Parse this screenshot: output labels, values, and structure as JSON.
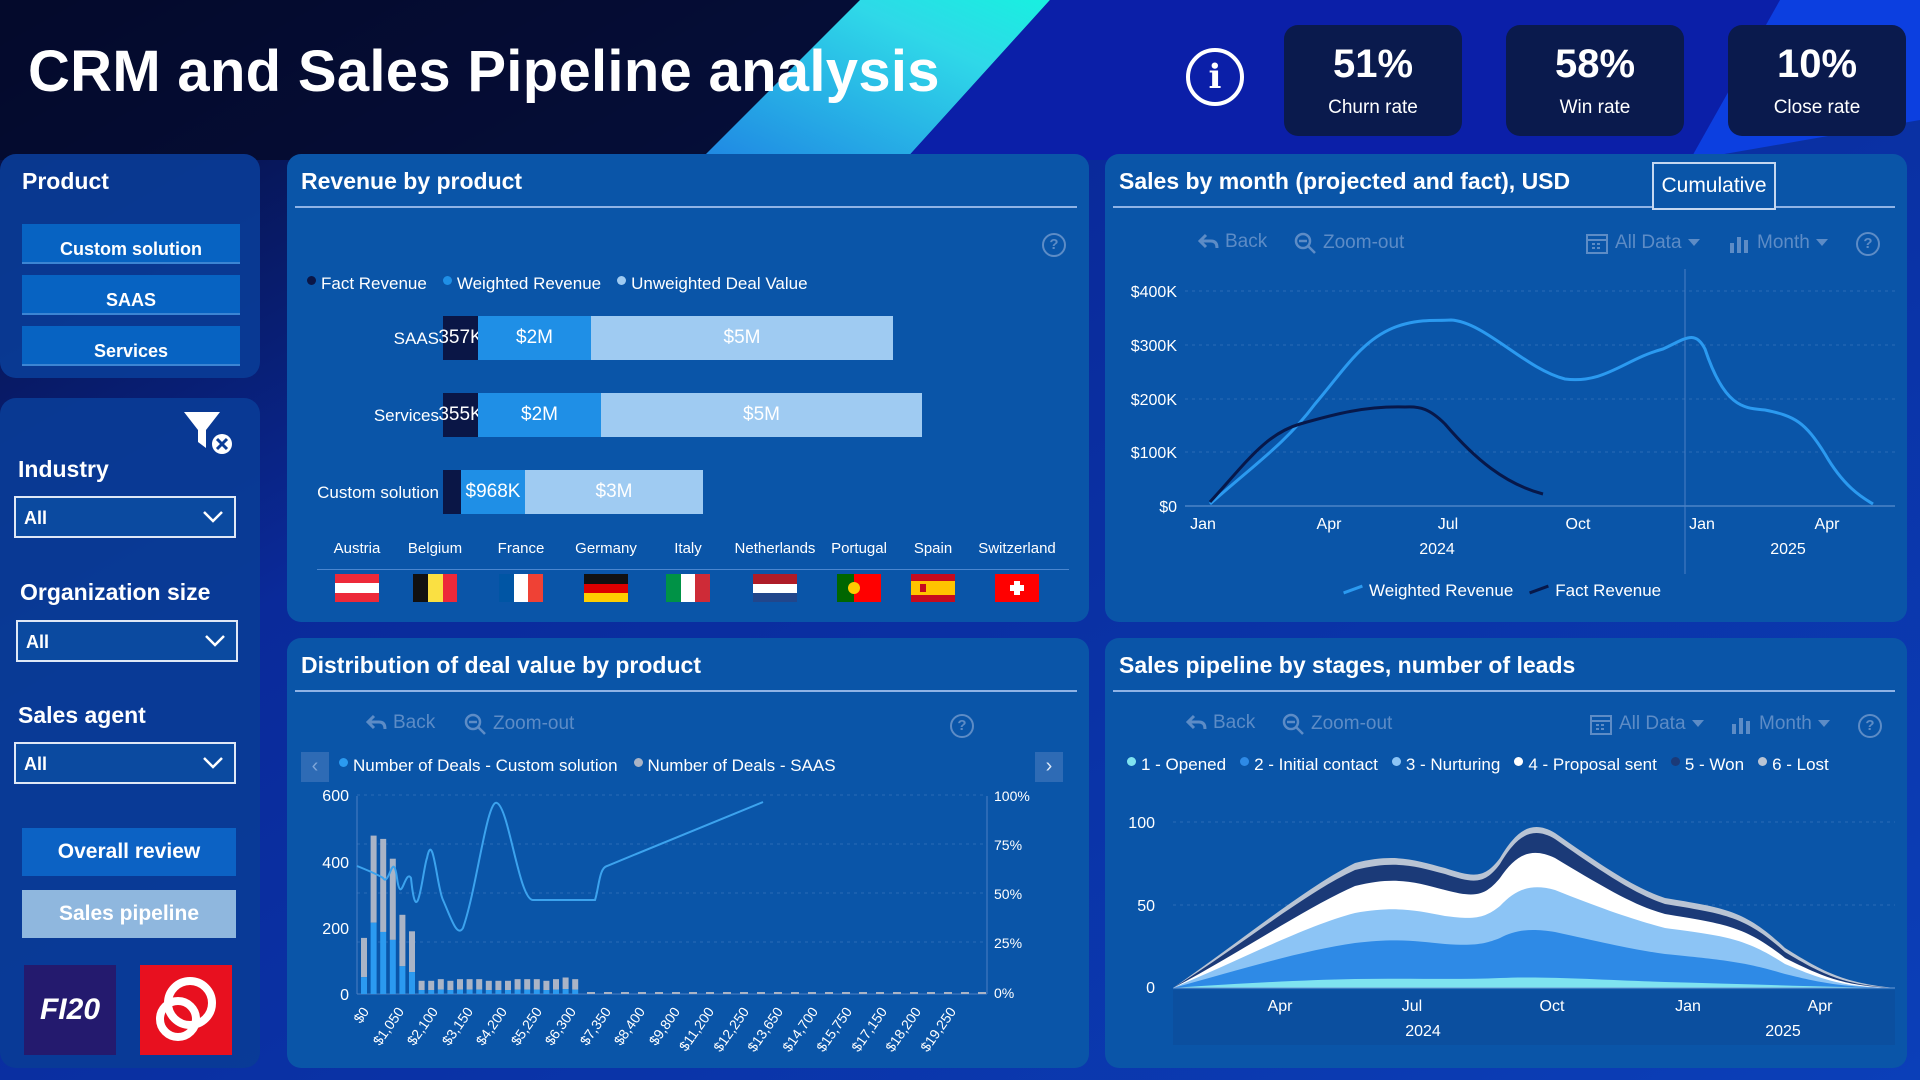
{
  "title": "CRM and Sales Pipeline analysis",
  "info_icon": "info-icon",
  "kpis": [
    {
      "value": "51%",
      "label": "Churn rate"
    },
    {
      "value": "58%",
      "label": "Win rate"
    },
    {
      "value": "10%",
      "label": "Close rate"
    }
  ],
  "sidebar": {
    "product_heading": "Product",
    "products": [
      "Custom solution",
      "SAAS",
      "Services"
    ],
    "clear_filter_icon": "clear-filter-icon",
    "filters": [
      {
        "label": "Industry",
        "value": "All"
      },
      {
        "label": "Organization size",
        "value": "All"
      },
      {
        "label": "Sales agent",
        "value": "All"
      }
    ],
    "nav": {
      "overall": "Overall review",
      "pipeline": "Sales pipeline"
    },
    "logos": {
      "left": "FI20",
      "right": "brand-logo"
    }
  },
  "controls": {
    "back": "Back",
    "zoom_out": "Zoom-out",
    "all_data": "All Data",
    "month": "Month",
    "help": "?"
  },
  "revenue_by_product": {
    "title": "Revenue by product",
    "legend": [
      "Fact Revenue",
      "Weighted Revenue",
      "Unweighted Deal Value"
    ],
    "rows": [
      {
        "label": "SAAS",
        "fact": "357K",
        "weighted": "$2M",
        "unweighted": "$5M"
      },
      {
        "label": "Services",
        "fact": "355K",
        "weighted": "$2M",
        "unweighted": "$5M"
      },
      {
        "label": "Custom solution",
        "fact": "",
        "weighted": "$968K",
        "unweighted": "$3M"
      }
    ],
    "countries": [
      "Austria",
      "Belgium",
      "France",
      "Germany",
      "Italy",
      "Netherlands",
      "Portugal",
      "Spain",
      "Switzerland"
    ],
    "colors": {
      "fact": "#0a1646",
      "weighted": "#1f8fe6",
      "unweighted": "#9fcbf2"
    }
  },
  "sales_by_month": {
    "title": "Sales by month (projected and fact), USD",
    "toggle": "Cumulative",
    "y_ticks": [
      "$400K",
      "$300K",
      "$200K",
      "$100K",
      "$0"
    ],
    "x_ticks": [
      "Jan",
      "Apr",
      "Jul",
      "Oct",
      "Jan",
      "Apr"
    ],
    "years": [
      "2024",
      "2025"
    ],
    "legend": [
      "Weighted Revenue",
      "Fact Revenue"
    ]
  },
  "distribution": {
    "title": "Distribution of deal value by product",
    "legend": [
      "Number of Deals - Custom solution",
      "Number of Deals - SAAS"
    ],
    "y_left": [
      "600",
      "400",
      "200",
      "0"
    ],
    "y_right": [
      "100%",
      "75%",
      "50%",
      "25%",
      "0%"
    ],
    "x_ticks": [
      "$0",
      "$1,050",
      "$2,100",
      "$3,150",
      "$4,200",
      "$5,250",
      "$6,300",
      "$7,350",
      "$8,400",
      "$9,800",
      "$11,200",
      "$12,250",
      "$13,650",
      "$14,700",
      "$15,750",
      "$17,150",
      "$18,200",
      "$19,250"
    ]
  },
  "pipeline": {
    "title": "Sales pipeline by stages, number of leads",
    "legend": [
      "1 - Opened",
      "2 - Initial contact",
      "3 - Nurturing",
      "4 - Proposal sent",
      "5 - Won",
      "6 - Lost"
    ],
    "legend_colors": [
      "#7fe3f0",
      "#2e8ae6",
      "#8cc4f5",
      "#ffffff",
      "#1b3a78",
      "#b9c4d4"
    ],
    "y_ticks": [
      "100",
      "50",
      "0"
    ],
    "x_ticks": [
      "Apr",
      "Jul",
      "Oct",
      "Jan",
      "Apr"
    ],
    "years": [
      "2024",
      "2025"
    ]
  }
}
